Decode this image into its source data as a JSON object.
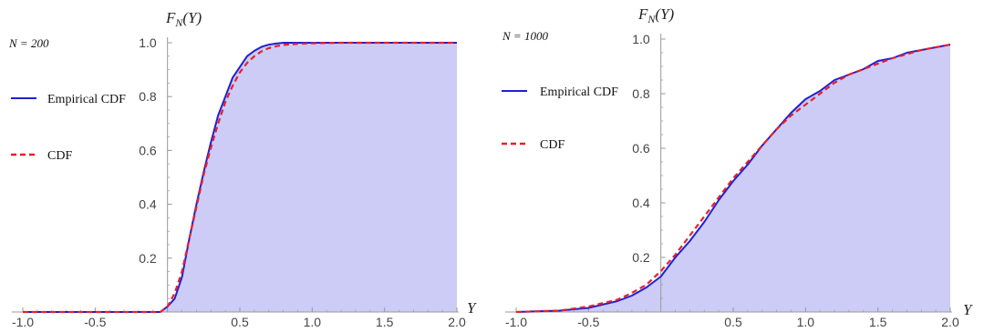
{
  "colors": {
    "fill": "#ccccf7",
    "empirical": "#1f1fd6",
    "theoretical": "#e8202a",
    "axis": "#999999",
    "text": "#444444"
  },
  "chart_data": [
    {
      "type": "line",
      "sample_label": "N = 200",
      "ylabel": "F_N(Y)",
      "xlabel": "Y",
      "xlim": [
        -1.0,
        2.0
      ],
      "ylim": [
        0,
        1.0
      ],
      "xticks": [
        "-1.0",
        "-0.5",
        "0.5",
        "1.0",
        "1.5",
        "2.0"
      ],
      "yticks": [
        "0.2",
        "0.4",
        "0.6",
        "0.8",
        "1.0"
      ],
      "legend": {
        "placement": "left",
        "entries": [
          "Empirical CDF",
          "CDF"
        ]
      },
      "fill_under": "Empirical CDF",
      "series": [
        {
          "name": "Empirical CDF",
          "style": "solid",
          "x": [
            -1.0,
            -0.05,
            0.0,
            0.05,
            0.1,
            0.15,
            0.2,
            0.25,
            0.3,
            0.35,
            0.4,
            0.45,
            0.5,
            0.55,
            0.6,
            0.65,
            0.7,
            0.75,
            0.8,
            0.9,
            1.0,
            1.2,
            1.5,
            2.0
          ],
          "y": [
            0.0,
            0.0,
            0.02,
            0.05,
            0.13,
            0.27,
            0.4,
            0.52,
            0.63,
            0.73,
            0.8,
            0.87,
            0.91,
            0.95,
            0.97,
            0.985,
            0.993,
            0.997,
            1.0,
            1.0,
            1.0,
            1.0,
            1.0,
            1.0
          ]
        },
        {
          "name": "CDF",
          "style": "dashed",
          "x": [
            -1.0,
            -0.05,
            0.0,
            0.05,
            0.1,
            0.15,
            0.2,
            0.25,
            0.3,
            0.35,
            0.4,
            0.45,
            0.5,
            0.55,
            0.6,
            0.65,
            0.7,
            0.75,
            0.8,
            0.9,
            1.0,
            1.2,
            1.5,
            2.0
          ],
          "y": [
            0.0,
            0.0,
            0.02,
            0.07,
            0.15,
            0.27,
            0.39,
            0.51,
            0.61,
            0.7,
            0.78,
            0.84,
            0.89,
            0.925,
            0.95,
            0.968,
            0.98,
            0.987,
            0.992,
            0.996,
            0.998,
            1.0,
            1.0,
            1.0
          ]
        }
      ]
    },
    {
      "type": "line",
      "sample_label": "N = 1000",
      "ylabel": "F_N(Y)",
      "xlabel": "Y",
      "xlim": [
        -1.0,
        2.0
      ],
      "ylim": [
        0,
        1.0
      ],
      "xticks": [
        "-1.0",
        "-0.5",
        "0.5",
        "1.0",
        "1.5",
        "2.0"
      ],
      "yticks": [
        "0.2",
        "0.4",
        "0.6",
        "0.8",
        "1.0"
      ],
      "legend": {
        "placement": "left",
        "entries": [
          "Empirical CDF",
          "CDF"
        ]
      },
      "fill_under": "Empirical CDF",
      "series": [
        {
          "name": "Empirical CDF",
          "style": "solid",
          "x": [
            -1.0,
            -0.7,
            -0.5,
            -0.3,
            -0.2,
            -0.1,
            0.0,
            0.1,
            0.2,
            0.3,
            0.4,
            0.5,
            0.6,
            0.7,
            0.8,
            0.9,
            1.0,
            1.1,
            1.2,
            1.3,
            1.4,
            1.5,
            1.6,
            1.7,
            1.8,
            1.9,
            2.0
          ],
          "y": [
            0.0,
            0.005,
            0.015,
            0.04,
            0.06,
            0.09,
            0.13,
            0.2,
            0.26,
            0.33,
            0.41,
            0.48,
            0.54,
            0.61,
            0.67,
            0.73,
            0.78,
            0.81,
            0.85,
            0.87,
            0.89,
            0.92,
            0.93,
            0.95,
            0.96,
            0.97,
            0.98
          ]
        },
        {
          "name": "CDF",
          "style": "dashed",
          "x": [
            -1.0,
            -0.7,
            -0.5,
            -0.3,
            -0.2,
            -0.1,
            0.0,
            0.1,
            0.2,
            0.3,
            0.4,
            0.5,
            0.6,
            0.7,
            0.8,
            0.9,
            1.0,
            1.1,
            1.2,
            1.3,
            1.4,
            1.5,
            1.6,
            1.7,
            1.8,
            1.9,
            2.0
          ],
          "y": [
            0.0,
            0.005,
            0.02,
            0.045,
            0.07,
            0.1,
            0.15,
            0.21,
            0.28,
            0.35,
            0.42,
            0.49,
            0.55,
            0.61,
            0.67,
            0.72,
            0.76,
            0.8,
            0.84,
            0.87,
            0.89,
            0.91,
            0.93,
            0.945,
            0.96,
            0.97,
            0.98
          ]
        }
      ]
    }
  ]
}
